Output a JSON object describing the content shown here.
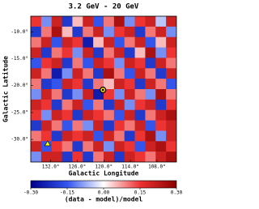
{
  "chart_data": {
    "type": "heatmap",
    "title": "3.2 GeV - 20 GeV",
    "xlabel": "Galactic Longitude",
    "ylabel": "Galactic Latitude",
    "xlim": [
      136.5,
      103.6
    ],
    "ylim": [
      -34.2,
      -7.1
    ],
    "xticks": [
      {
        "value": 132,
        "label": "132.0°"
      },
      {
        "value": 126,
        "label": "126.0°"
      },
      {
        "value": 120,
        "label": "120.0°"
      },
      {
        "value": 114,
        "label": "114.0°"
      },
      {
        "value": 108,
        "label": "108.0°"
      }
    ],
    "yticks": [
      {
        "value": -10,
        "label": "-10.0°"
      },
      {
        "value": -15,
        "label": "-15.0°"
      },
      {
        "value": -20,
        "label": "-20.0°"
      },
      {
        "value": -25,
        "label": "-25.0°"
      },
      {
        "value": -30,
        "label": "-30.0°"
      }
    ],
    "z": [
      [
        0.15,
        -0.1,
        0.2,
        -0.2,
        0.05,
        0.2,
        -0.15,
        0.1,
        0.25,
        -0.1,
        0.15,
        0.2,
        -0.05,
        0.2
      ],
      [
        -0.2,
        0.1,
        0.25,
        0.05,
        -0.2,
        0.1,
        0.2,
        -0.1,
        0.15,
        0.2,
        -0.2,
        0.1,
        0.2,
        -0.1
      ],
      [
        0.1,
        0.2,
        -0.15,
        0.2,
        0.15,
        -0.25,
        0.05,
        0.2,
        -0.15,
        0.1,
        0.2,
        -0.15,
        0.05,
        0.2
      ],
      [
        0.2,
        -0.2,
        0.1,
        0.15,
        -0.1,
        0.2,
        -0.2,
        0.1,
        0.2,
        -0.2,
        0.05,
        0.25,
        -0.1,
        0.15
      ],
      [
        -0.15,
        0.15,
        0.2,
        -0.2,
        0.1,
        -0.15,
        0.2,
        0.15,
        -0.1,
        0.2,
        0.15,
        -0.2,
        0.2,
        0.1
      ],
      [
        0.2,
        0.1,
        -0.25,
        -0.1,
        0.2,
        0.1,
        -0.2,
        0.25,
        0.1,
        -0.15,
        0.2,
        0.1,
        -0.2,
        0.2
      ],
      [
        0.1,
        -0.2,
        -0.15,
        0.2,
        0.15,
        -0.2,
        0.1,
        0.05,
        0.2,
        0.15,
        -0.2,
        0.2,
        0.1,
        -0.15
      ],
      [
        -0.1,
        0.2,
        0.1,
        -0.2,
        -0.1,
        0.2,
        -0.25,
        0.15,
        -0.1,
        0.2,
        0.1,
        -0.1,
        0.25,
        0.1
      ],
      [
        0.2,
        0.15,
        -0.2,
        0.1,
        0.2,
        -0.15,
        0.1,
        -0.2,
        0.2,
        -0.1,
        0.15,
        0.2,
        -0.2,
        0.15
      ],
      [
        0.15,
        -0.1,
        0.2,
        0.15,
        -0.2,
        0.2,
        0.15,
        0.1,
        -0.15,
        0.2,
        -0.2,
        0.1,
        0.2,
        0.25
      ],
      [
        -0.2,
        0.2,
        0.1,
        -0.15,
        0.1,
        -0.1,
        0.2,
        -0.2,
        0.15,
        0.1,
        0.2,
        -0.15,
        0.15,
        0.2
      ],
      [
        0.1,
        0.15,
        -0.2,
        0.2,
        0.15,
        0.2,
        -0.15,
        0.2,
        0.1,
        -0.2,
        0.15,
        0.25,
        -0.1,
        0.2
      ],
      [
        0.2,
        -0.15,
        0.15,
        0.1,
        -0.2,
        0.1,
        0.2,
        -0.1,
        0.2,
        0.15,
        -0.15,
        0.2,
        0.25,
        0.15
      ],
      [
        -0.1,
        0.2,
        0.2,
        -0.2,
        0.15,
        -0.2,
        0.1,
        0.2,
        -0.2,
        0.2,
        0.15,
        0.1,
        0.2,
        0.25
      ]
    ],
    "colors": [
      "#00008b",
      "#3355ee",
      "#ffffff",
      "#ee3333",
      "#8b0000"
    ],
    "clim": [
      -0.3,
      0.3
    ],
    "cticks": [
      {
        "value": -0.3,
        "label": "-0.30"
      },
      {
        "value": -0.15,
        "label": "-0.15"
      },
      {
        "value": 0,
        "label": "0.00"
      },
      {
        "value": 0.15,
        "label": "0.15"
      },
      {
        "value": 0.3,
        "label": "0.30"
      }
    ],
    "clabel": "(data - model)/model",
    "markers": [
      {
        "shape": "circle",
        "x": 120.2,
        "y": -20.8,
        "color": "#ffd700"
      },
      {
        "shape": "triangle",
        "x": 132.7,
        "y": -30.8,
        "color": "#ffff00"
      }
    ]
  }
}
